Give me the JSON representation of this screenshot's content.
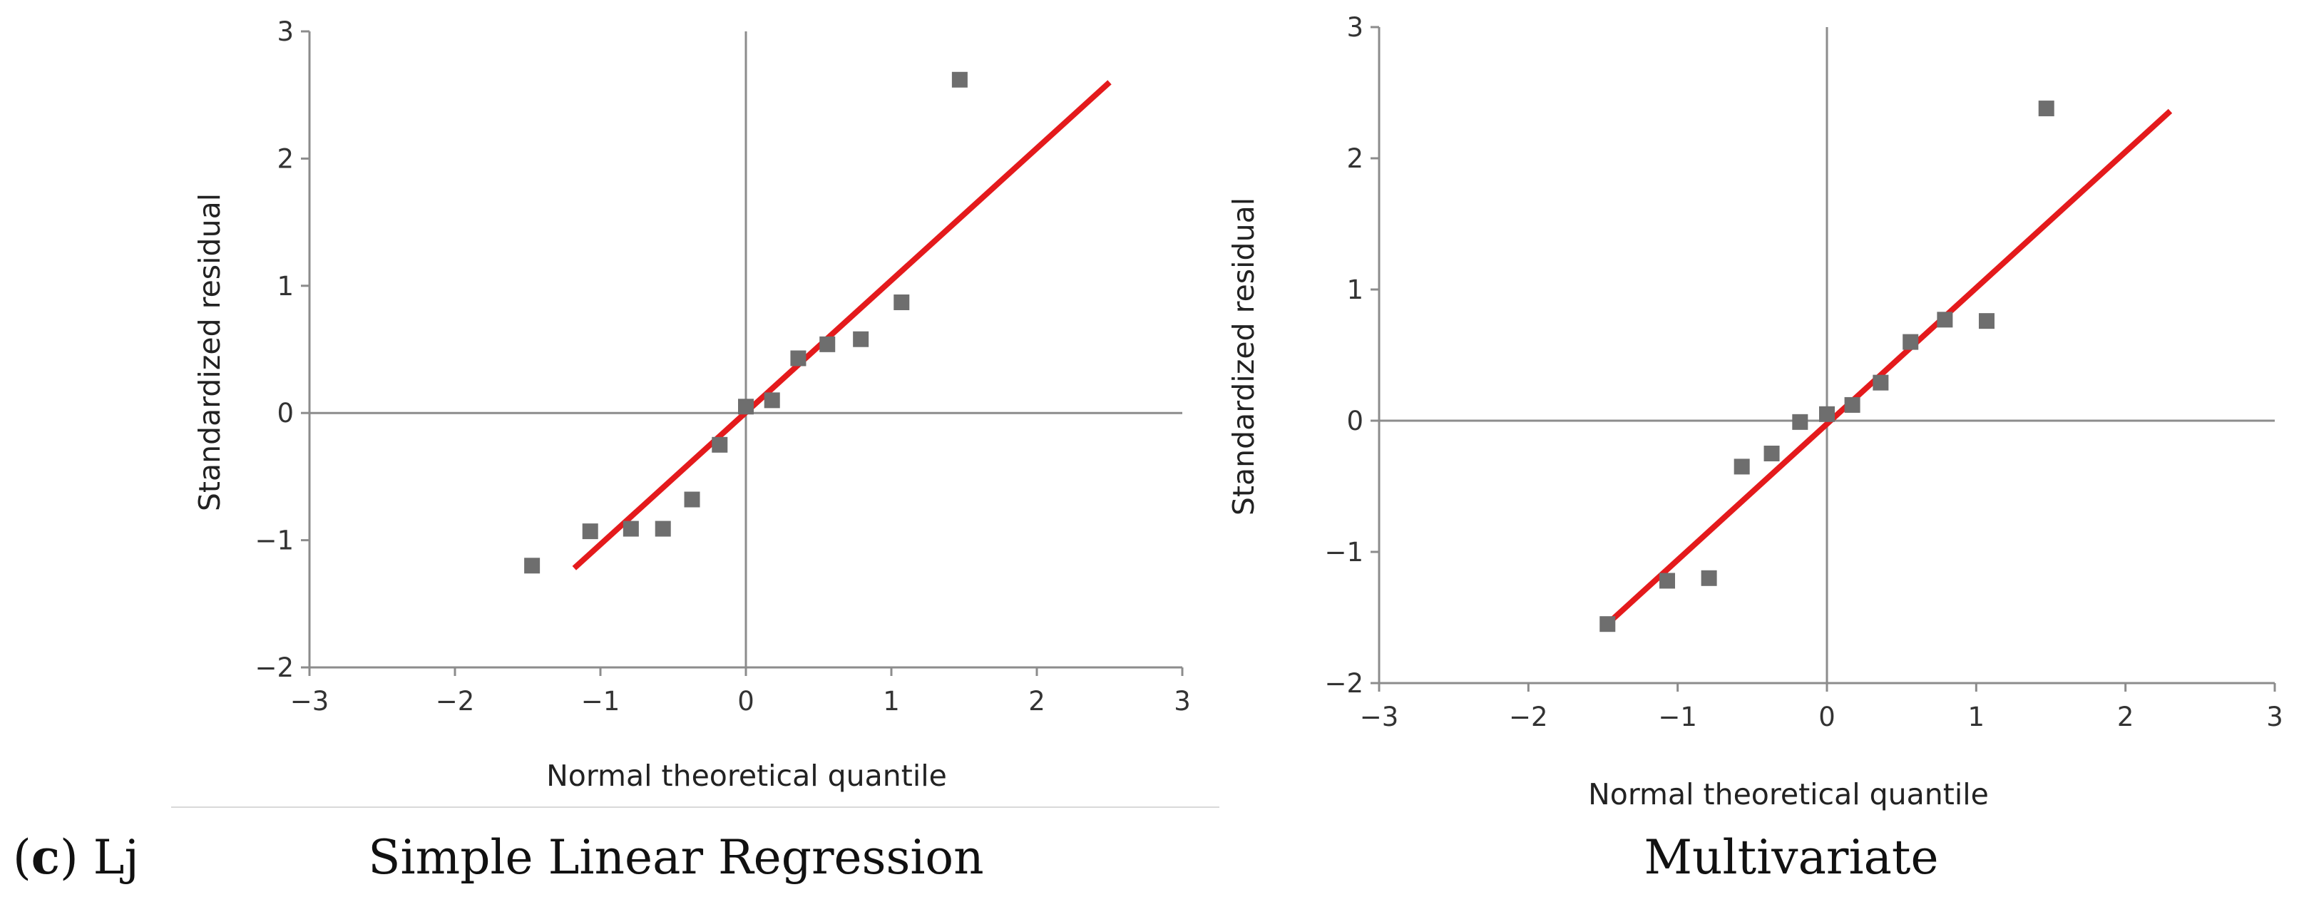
{
  "caption": {
    "panel_label": "c",
    "panel_suffix": ") Lj",
    "panel_open": "("
  },
  "chart_data": [
    {
      "type": "scatter",
      "title": "Simple Linear Regression",
      "xlabel": "Normal theoretical quantile",
      "ylabel": "Standardized residual",
      "xlim": [
        -3,
        3
      ],
      "ylim": [
        -2,
        3
      ],
      "xticks": [
        -3,
        -2,
        -1,
        0,
        1,
        2,
        3
      ],
      "yticks": [
        -2,
        -1,
        0,
        1,
        2,
        3
      ],
      "xtick_labels": [
        "−3",
        "−2",
        "−1",
        "0",
        "1",
        "2",
        "3"
      ],
      "ytick_labels": [
        "−2",
        "−1",
        "0",
        "1",
        "2",
        "3"
      ],
      "grid": false,
      "marker_color": "#6e6e6e",
      "line_color": "#e41a1c",
      "points": [
        {
          "x": -1.47,
          "y": -1.2
        },
        {
          "x": -1.07,
          "y": -0.93
        },
        {
          "x": -0.79,
          "y": -0.91
        },
        {
          "x": -0.57,
          "y": -0.91
        },
        {
          "x": -0.37,
          "y": -0.68
        },
        {
          "x": -0.18,
          "y": -0.25
        },
        {
          "x": 0.0,
          "y": 0.05
        },
        {
          "x": 0.18,
          "y": 0.1
        },
        {
          "x": 0.36,
          "y": 0.43
        },
        {
          "x": 0.56,
          "y": 0.54
        },
        {
          "x": 0.79,
          "y": 0.58
        },
        {
          "x": 1.07,
          "y": 0.87
        },
        {
          "x": 1.47,
          "y": 2.62
        }
      ],
      "fit_line": {
        "x": [
          -1.18,
          2.5
        ],
        "y": [
          -1.22,
          2.6
        ]
      }
    },
    {
      "type": "scatter",
      "title": "Multivariate",
      "xlabel": "Normal theoretical quantile",
      "ylabel": "Standardized residual",
      "xlim": [
        -3,
        3
      ],
      "ylim": [
        -2,
        3
      ],
      "xticks": [
        -3,
        -2,
        -1,
        0,
        1,
        2,
        3
      ],
      "yticks": [
        -2,
        -1,
        0,
        1,
        2,
        3
      ],
      "xtick_labels": [
        "−3",
        "−2",
        "−1",
        "0",
        "1",
        "2",
        "3"
      ],
      "ytick_labels": [
        "−2",
        "−1",
        "0",
        "1",
        "2",
        "3"
      ],
      "grid": false,
      "marker_color": "#6e6e6e",
      "line_color": "#e41a1c",
      "points": [
        {
          "x": -1.47,
          "y": -1.55
        },
        {
          "x": -1.07,
          "y": -1.22
        },
        {
          "x": -0.79,
          "y": -1.2
        },
        {
          "x": -0.57,
          "y": -0.35
        },
        {
          "x": -0.37,
          "y": -0.25
        },
        {
          "x": -0.18,
          "y": -0.01
        },
        {
          "x": 0.0,
          "y": 0.05
        },
        {
          "x": 0.17,
          "y": 0.12
        },
        {
          "x": 0.36,
          "y": 0.29
        },
        {
          "x": 0.56,
          "y": 0.6
        },
        {
          "x": 0.79,
          "y": 0.77
        },
        {
          "x": 1.07,
          "y": 0.76
        },
        {
          "x": 1.47,
          "y": 2.38
        }
      ],
      "fit_line": {
        "x": [
          -1.5,
          2.3
        ],
        "y": [
          -1.58,
          2.36
        ]
      }
    }
  ]
}
